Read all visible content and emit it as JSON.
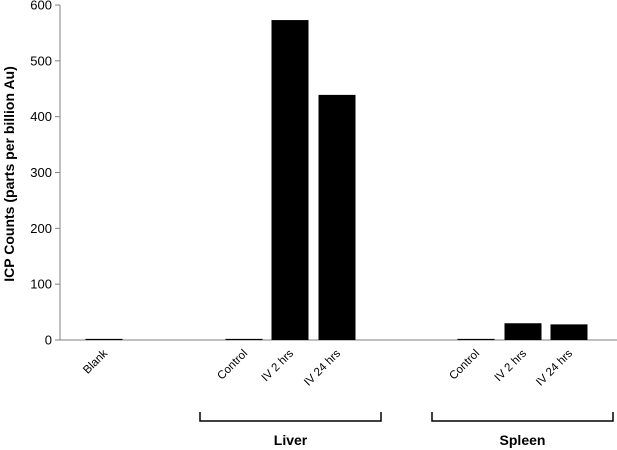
{
  "chart_data": {
    "type": "bar",
    "ylabel": "ICP Counts (parts per billion Au)",
    "ylim": [
      0,
      600
    ],
    "yticks": [
      0,
      100,
      200,
      300,
      400,
      500,
      600
    ],
    "bar_color": "#000000",
    "categories": [
      "Blank",
      "Control",
      "IV 2 hrs",
      "IV 24 hrs",
      "Control",
      "IV 2 hrs",
      "IV 24 hrs"
    ],
    "values": [
      2,
      2,
      573,
      439,
      2,
      30,
      28
    ],
    "groups": [
      {
        "label": "Liver",
        "members": [
          1,
          2,
          3
        ]
      },
      {
        "label": "Spleen",
        "members": [
          4,
          5,
          6
        ]
      }
    ],
    "grid": false
  }
}
